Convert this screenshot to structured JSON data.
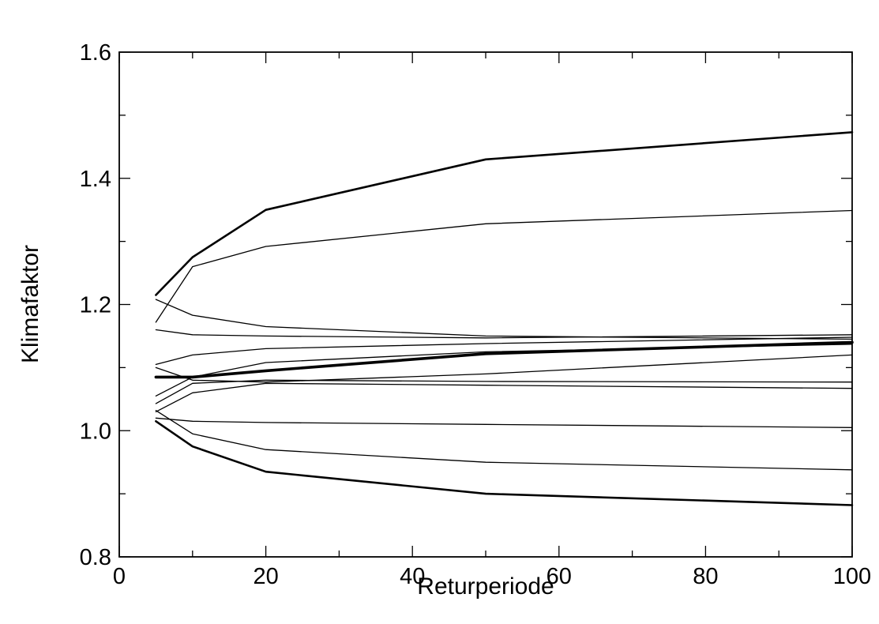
{
  "chart_data": {
    "type": "line",
    "title": "",
    "xlabel": "Returperiode",
    "ylabel": "Klimafaktor",
    "xlim": [
      0,
      100
    ],
    "ylim": [
      0.8,
      1.6
    ],
    "x_ticks": [
      "0",
      "20",
      "40",
      "60",
      "80",
      "100"
    ],
    "y_ticks": [
      "0.8",
      "1.0",
      "1.2",
      "1.4",
      "1.6"
    ],
    "grid": false,
    "legend": "none",
    "x": [
      5,
      10,
      20,
      50,
      100
    ],
    "series": [
      {
        "values": [
          1.215,
          1.275,
          1.35,
          1.43,
          1.473
        ],
        "weight": "bold"
      },
      {
        "values": [
          1.172,
          1.26,
          1.292,
          1.328,
          1.349
        ],
        "weight": "thin"
      },
      {
        "values": [
          1.208,
          1.183,
          1.165,
          1.15,
          1.145
        ],
        "weight": "thin"
      },
      {
        "values": [
          1.16,
          1.152,
          1.15,
          1.147,
          1.152
        ],
        "weight": "thin"
      },
      {
        "values": [
          1.105,
          1.12,
          1.13,
          1.138,
          1.148
        ],
        "weight": "thin"
      },
      {
        "values": [
          1.085,
          1.085,
          1.095,
          1.122,
          1.14
        ],
        "weight": "mean"
      },
      {
        "values": [
          1.055,
          1.085,
          1.108,
          1.125,
          1.137
        ],
        "weight": "thin"
      },
      {
        "values": [
          1.1,
          1.08,
          1.077,
          1.09,
          1.12
        ],
        "weight": "thin"
      },
      {
        "values": [
          1.043,
          1.075,
          1.08,
          1.078,
          1.077
        ],
        "weight": "thin"
      },
      {
        "values": [
          1.03,
          1.06,
          1.075,
          1.072,
          1.067
        ],
        "weight": "thin"
      },
      {
        "values": [
          1.02,
          1.015,
          1.013,
          1.01,
          1.005
        ],
        "weight": "thin"
      },
      {
        "values": [
          1.032,
          0.995,
          0.97,
          0.95,
          0.938
        ],
        "weight": "thin"
      },
      {
        "values": [
          1.015,
          0.975,
          0.935,
          0.9,
          0.882
        ],
        "weight": "bold"
      }
    ]
  }
}
